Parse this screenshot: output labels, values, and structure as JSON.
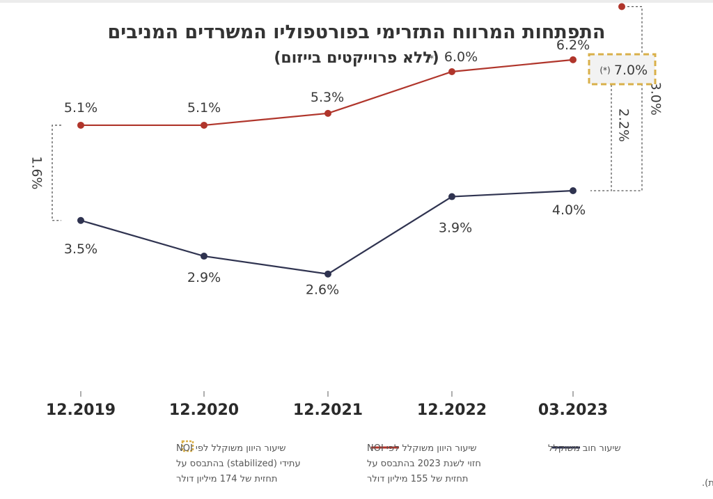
{
  "title": "התפתחות המרווח התזרימי בפורטפוליו המשרדים המניבים",
  "subtitle": "(ללא פרוייקטים בייזום)",
  "colors": {
    "cap_rate": "#b0352b",
    "debt_rate": "#2f3350",
    "projected_box": "#d9b04a"
  },
  "chart_data": {
    "type": "line",
    "categories": [
      "12.2019",
      "12.2020",
      "12.2021",
      "12.2022",
      "03.2023"
    ],
    "series": [
      {
        "key": "cap_rate",
        "values": [
          5.1,
          5.1,
          5.3,
          6.0,
          6.2
        ],
        "labels": [
          "5.1%",
          "5.1%",
          "5.3%",
          "6.0%",
          "6.2%"
        ]
      },
      {
        "key": "debt_rate",
        "values": [
          3.5,
          2.9,
          2.6,
          3.9,
          4.0
        ],
        "labels": [
          "3.5%",
          "2.9%",
          "2.6%",
          "3.9%",
          "4.0%"
        ]
      }
    ],
    "projected_point": {
      "value": 7.0,
      "label": "7.0%",
      "note": "(*)"
    },
    "estimate_note": "(*)",
    "spreads": [
      {
        "label": "1.6%",
        "category_index": 0,
        "from": 3.5,
        "to": 5.1
      },
      {
        "label": "2.2%",
        "category_index": 4,
        "from": 4.0,
        "to": 6.2
      },
      {
        "label": "3.0%",
        "category_index": 4,
        "from": 4.0,
        "to": 7.0
      }
    ],
    "ylim": [
      2.0,
      7.5
    ],
    "grid": false
  },
  "legend": {
    "debt_rate": "שיעור חוב משוקלל",
    "cap_rate_lines": [
      "שיעור היוון משוקלל לפי NOI",
      "חזוי לשנת 2023 בהתבסס על",
      "תחזית של 155 מיליון דולר"
    ],
    "projected_lines": [
      "שיעור היוון משוקלל לפי NOI",
      "עתידי (stabilized) בהתבסס על",
      "תחזית של 174 מיליון דולר"
    ]
  },
  "footnote": "(*) מידע זה צופה פני עתיד (ראה/י הערות כלליות למצגת)."
}
